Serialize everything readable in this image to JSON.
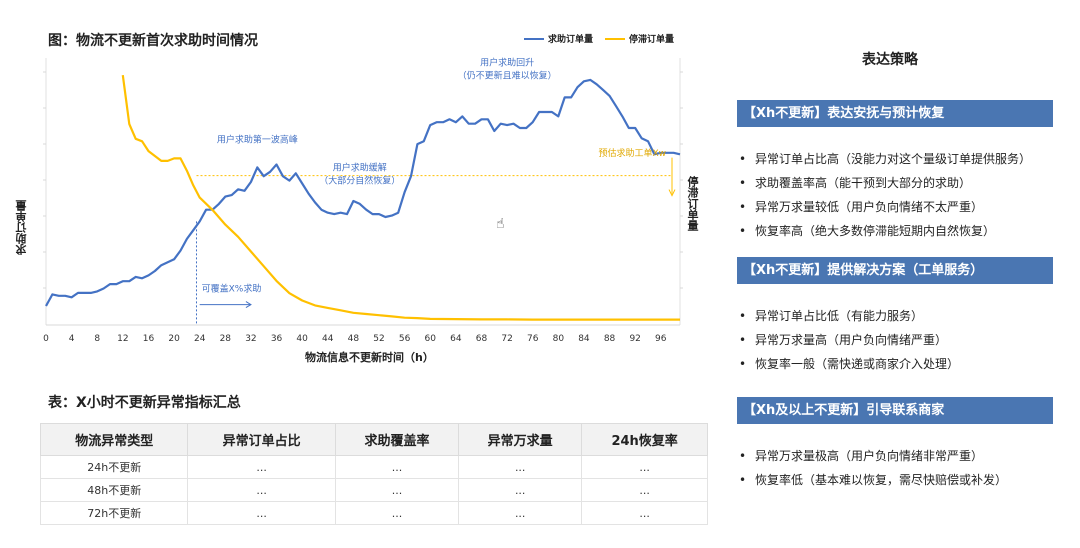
{
  "chart_title": "图：物流不更新首次求助时间情况",
  "chart_data": {
    "type": "line",
    "xlabel": "物流信息不更新时间（h）",
    "ylabel_left": "求助订单量",
    "ylabel_right": "停滞订单量",
    "x_ticks": [
      0,
      4,
      8,
      12,
      16,
      20,
      24,
      28,
      32,
      36,
      40,
      44,
      48,
      52,
      56,
      60,
      64,
      68,
      72,
      76,
      80,
      84,
      88,
      92,
      96
    ],
    "xlim": [
      0,
      99
    ],
    "series": [
      {
        "name": "求助订单量",
        "color": "#4472c4",
        "x": [
          0,
          1,
          2,
          3,
          4,
          5,
          6,
          7,
          8,
          9,
          10,
          11,
          12,
          13,
          14,
          15,
          16,
          17,
          18,
          19,
          20,
          21,
          22,
          23,
          24,
          25,
          26,
          27,
          28,
          29,
          30,
          31,
          32,
          33,
          34,
          35,
          36,
          37,
          38,
          39,
          40,
          41,
          42,
          43,
          44,
          45,
          46,
          47,
          48,
          49,
          50,
          51,
          52,
          53,
          54,
          55,
          56,
          57,
          58,
          59,
          60,
          61,
          62,
          63,
          64,
          65,
          66,
          67,
          68,
          69,
          70,
          71,
          72,
          73,
          74,
          75,
          76,
          77,
          78,
          79,
          80,
          81,
          82,
          83,
          84,
          85,
          86,
          87,
          88,
          89,
          90,
          91,
          92,
          93,
          94,
          95,
          96,
          97,
          98,
          99
        ],
        "values": [
          5,
          13,
          12,
          12,
          11,
          14,
          14,
          14,
          15,
          17,
          20,
          20,
          22,
          22,
          25,
          24,
          26,
          29,
          33,
          35,
          37,
          43,
          51,
          57,
          63,
          71,
          71,
          75,
          80,
          81,
          85,
          84,
          90,
          100,
          94,
          97,
          102,
          94,
          91,
          96,
          89,
          82,
          76,
          71,
          69,
          68,
          69,
          68,
          77,
          75,
          71,
          68,
          68,
          66,
          67,
          69,
          83,
          94,
          116,
          118,
          129,
          131,
          131,
          133,
          131,
          135,
          130,
          130,
          133,
          133,
          125,
          130,
          129,
          130,
          127,
          127,
          131,
          138,
          138,
          138,
          135,
          148,
          148,
          155,
          159,
          160,
          157,
          153,
          149,
          142,
          135,
          127,
          127,
          120,
          118,
          109,
          110,
          110,
          110,
          109
        ],
        "ylim": [
          -8,
          175
        ]
      },
      {
        "name": "停滞订单量",
        "color": "#ffc000",
        "x": [
          12,
          13,
          14,
          15,
          16,
          17,
          18,
          19,
          20,
          21,
          22,
          23,
          24,
          26,
          28,
          30,
          32,
          34,
          36,
          38,
          40,
          42,
          44,
          46,
          48,
          50,
          52,
          54,
          56,
          58,
          60,
          64,
          68,
          72,
          76,
          80,
          84,
          88,
          92,
          96,
          99
        ],
        "values": [
          100,
          80,
          74,
          73,
          69,
          67,
          65,
          65,
          66,
          66,
          61,
          55,
          50,
          45,
          39,
          34,
          28,
          22,
          16,
          11,
          8,
          6,
          5,
          4,
          3,
          2.5,
          2,
          1.5,
          1,
          0.8,
          0.5,
          0.4,
          0.3,
          0.3,
          0.2,
          0.2,
          0.2,
          0.2,
          0.2,
          0.2,
          0.2
        ],
        "ylim": [
          -2,
          107
        ]
      }
    ],
    "annotations": [
      {
        "text": "用户求助第一波高峰",
        "x": 33,
        "y": 117
      },
      {
        "text": "用户求助缓解",
        "x": 49,
        "y": 98
      },
      {
        "text": "（大部分自然恢复）",
        "x": 49,
        "y": 89
      },
      {
        "text": "用户求助回升",
        "x": 72,
        "y": 170
      },
      {
        "text": "（仍不更新且难以恢复）",
        "x": 72,
        "y": 161
      },
      {
        "text": "预估求助工单Xw",
        "x": 90,
        "y": 67
      },
      {
        "text": "可覆盖X%求助",
        "x": 29,
        "y": 15
      }
    ],
    "reference_lines": {
      "vertical_x": 23.5,
      "horizontal_y_right": 59
    },
    "legend_position": "top-right",
    "grid": false
  },
  "table": {
    "title": "表：X小时不更新异常指标汇总",
    "headers": [
      "物流异常类型",
      "异常订单占比",
      "求助覆盖率",
      "异常万求量",
      "24h恢复率"
    ],
    "rows": [
      [
        "24h不更新",
        "...",
        "...",
        "...",
        "..."
      ],
      [
        "48h不更新",
        "...",
        "...",
        "...",
        "..."
      ],
      [
        "72h不更新",
        "...",
        "...",
        "...",
        "..."
      ]
    ]
  },
  "strategy": {
    "title": "表达策略",
    "sections": [
      {
        "header": "【Xh不更新】表达安抚与预计恢复",
        "items": [
          "异常订单占比高（没能力对这个量级订单提供服务）",
          "求助覆盖率高（能干预到大部分的求助）",
          "异常万求量较低（用户负向情绪不太严重）",
          "恢复率高（绝大多数停滞能短期内自然恢复）"
        ]
      },
      {
        "header": "【Xh不更新】提供解决方案（工单服务）",
        "items": [
          "异常订单占比低（有能力服务）",
          "异常万求量高（用户负向情绪严重）",
          "恢复率一般（需快递或商家介入处理）"
        ]
      },
      {
        "header": "【Xh及以上不更新】引导联系商家",
        "items": [
          "异常万求量极高（用户负向情绪非常严重）",
          "恢复率低（基本难以恢复，需尽快赔偿或补发）"
        ]
      }
    ]
  }
}
